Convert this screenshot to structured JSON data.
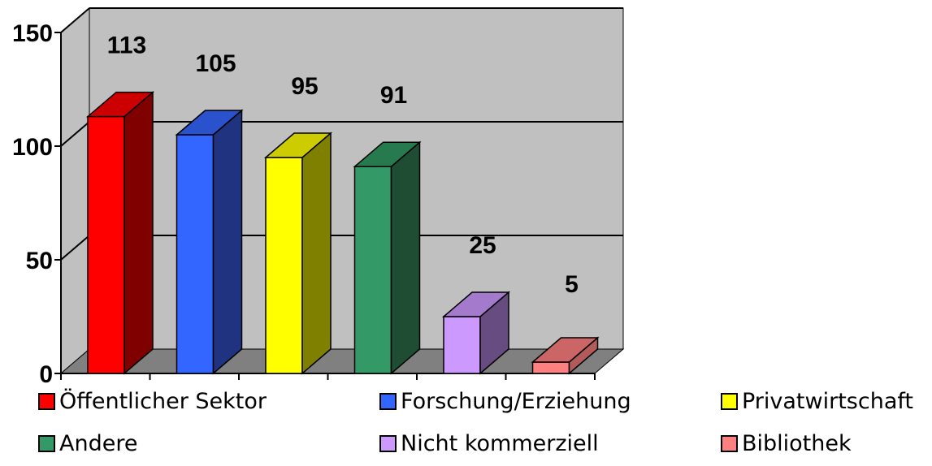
{
  "chart_data": {
    "type": "bar",
    "categories": [
      "Öffentlicher Sektor",
      "Forschung/Erziehung",
      "Privatwirtschaft",
      "Andere",
      "Nicht kommerziell",
      "Bibliothek"
    ],
    "values": [
      113,
      105,
      95,
      91,
      25,
      5
    ],
    "data_labels": [
      "113",
      "105",
      "95",
      "91",
      "25",
      "5"
    ],
    "ylim": [
      0,
      150
    ],
    "yticks": [
      0,
      50,
      100,
      150
    ],
    "ytick_labels": [
      "0",
      "50",
      "100",
      "150"
    ],
    "grid": true,
    "legend_position": "bottom",
    "colors": {
      "front": [
        "#ff0000",
        "#3366ff",
        "#ffff00",
        "#339966",
        "#cc99ff",
        "#ff8080"
      ],
      "side": [
        "#800000",
        "#1f3380",
        "#808000",
        "#1f4d33",
        "#664c80",
        "#b35a5a"
      ],
      "top": [
        "#cc0000",
        "#2a52cc",
        "#cccc00",
        "#267a4d",
        "#a37acc",
        "#cc6666"
      ],
      "wall": "#c0c0c0",
      "floor": "#808080"
    }
  }
}
